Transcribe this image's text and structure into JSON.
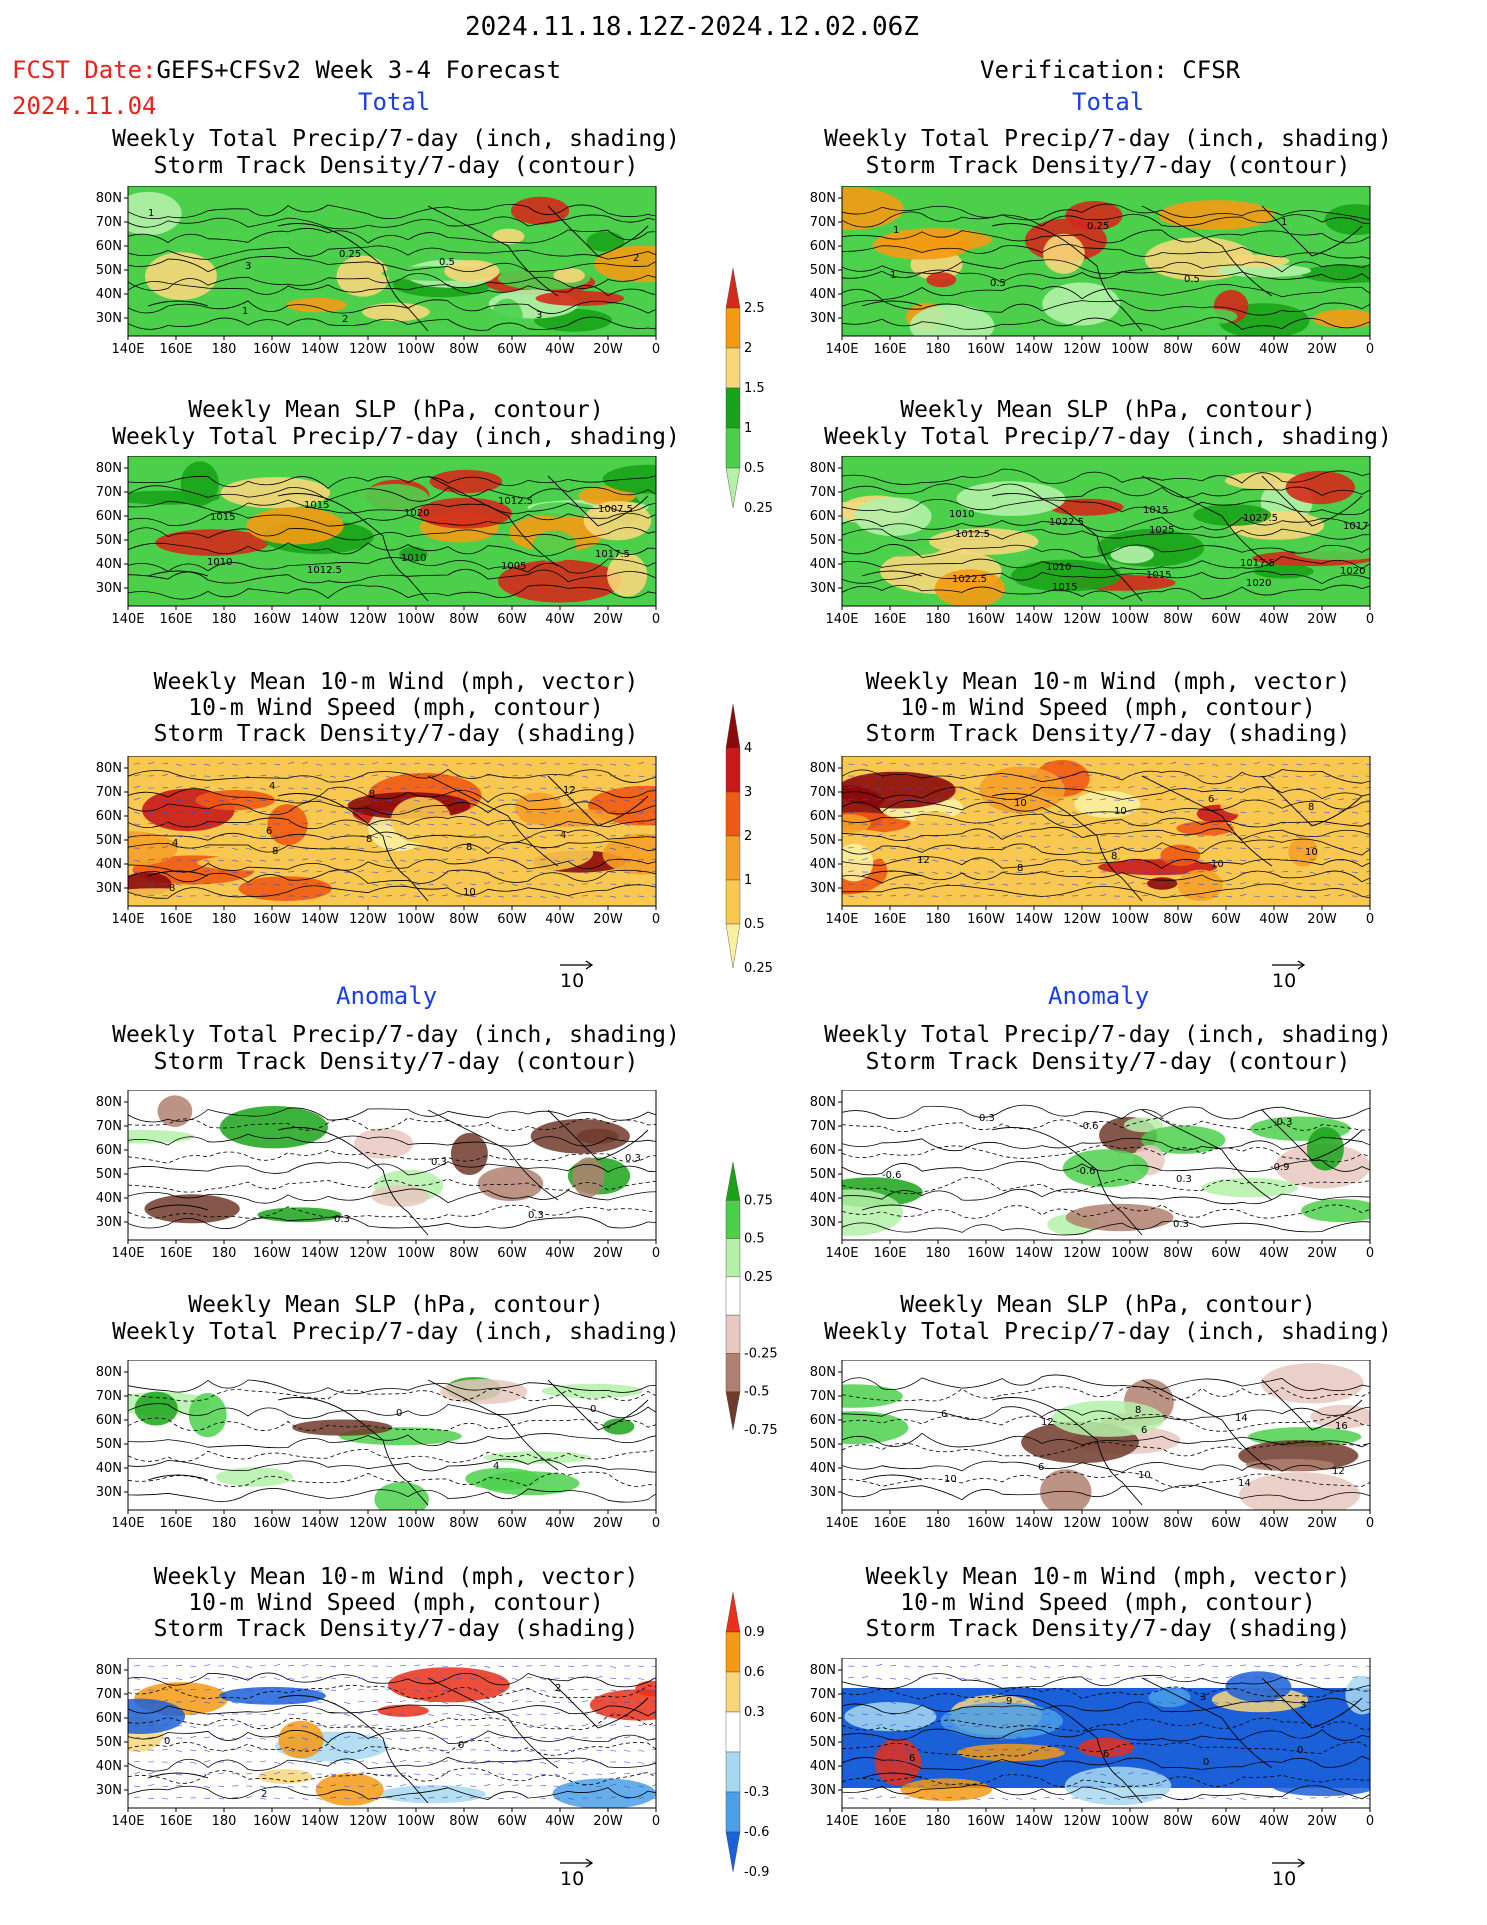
{
  "header": {
    "period": "2024.11.18.12Z-2024.12.02.06Z",
    "fcst_prefix": "FCST Date:",
    "fcst_label": "GEFS+CFSv2 Week 3-4 Forecast",
    "fcst_date": "2024.11.04",
    "verification": "Verification: CFSR"
  },
  "sections": {
    "total": "Total",
    "anomaly": "Anomaly"
  },
  "titles": {
    "precip_track": [
      "Weekly Total Precip/7-day (inch, shading)",
      "Storm Track Density/7-day (contour)"
    ],
    "slp_precip": [
      "Weekly Mean SLP (hPa, contour)",
      "Weekly Total Precip/7-day (inch, shading)"
    ],
    "wind": [
      "Weekly Mean 10-m Wind (mph, vector)",
      "10-m Wind Speed (mph, contour)",
      "Storm Track Density/7-day (shading)"
    ]
  },
  "axes": {
    "lat_ticks": [
      "80N",
      "70N",
      "60N",
      "50N",
      "40N",
      "30N"
    ],
    "lon_ticks": [
      "140E",
      "160E",
      "180",
      "160W",
      "140W",
      "120W",
      "100W",
      "80W",
      "60W",
      "40W",
      "20W",
      "0"
    ]
  },
  "vector_reference": "10",
  "colorbars": {
    "precip_total": {
      "labels": [
        "2.5",
        "2",
        "1.5",
        "1",
        "0.5",
        "0.25"
      ],
      "colors": [
        "#d42a1b",
        "#f59a14",
        "#f8d67a",
        "#1aa31a",
        "#4cd04c",
        "#b4f0a8"
      ]
    },
    "track_total": {
      "labels": [
        "4",
        "3",
        "2",
        "1",
        "0.5",
        "0.25"
      ],
      "colors": [
        "#8b0a0a",
        "#c81a1a",
        "#ef5a14",
        "#f5a02a",
        "#f8c850",
        "#fbf0a0"
      ]
    },
    "precip_anom": {
      "labels": [
        "0.75",
        "0.5",
        "0.25",
        "-0.25",
        "-0.5",
        "-0.75"
      ],
      "colors": [
        "#1aa31a",
        "#4cd04c",
        "#b4f0a8",
        "#ffffff",
        "#e8c8c0",
        "#b08070",
        "#6e3a2a"
      ]
    },
    "track_anom": {
      "labels": [
        "0.9",
        "0.6",
        "0.3",
        "-0.3",
        "-0.6",
        "-0.9"
      ],
      "colors": [
        "#e8301a",
        "#f59a14",
        "#f8d67a",
        "#ffffff",
        "#a8d8f0",
        "#4aa0e8",
        "#1a60d8"
      ]
    }
  },
  "panels": [
    {
      "id": "fc-total-precip",
      "col": 0,
      "kind": "precip",
      "labels": [
        "1",
        "3",
        "2",
        "0.5",
        "3",
        "2",
        "1",
        "0.25"
      ]
    },
    {
      "id": "vf-total-precip",
      "col": 1,
      "kind": "precip",
      "labels": [
        "1",
        "0.5",
        "0.25",
        "0.5",
        "1",
        "1"
      ]
    },
    {
      "id": "fc-total-slp",
      "col": 0,
      "kind": "precip",
      "labels": [
        "1015",
        "1012.5",
        "1020",
        "1005",
        "1007.5",
        "1010",
        "1015",
        "1010",
        "1012.5",
        "1017.5"
      ]
    },
    {
      "id": "vf-total-slp",
      "col": 1,
      "kind": "precip",
      "labels": [
        "1012.5",
        "1015",
        "1025",
        "1020",
        "1017.5",
        "1022.5",
        "1022.5",
        "1015",
        "1027.5",
        "1020",
        "1010",
        "1010",
        "1015",
        "1017.5"
      ]
    },
    {
      "id": "fc-total-wind",
      "col": 0,
      "kind": "track",
      "labels": [
        "8",
        "8",
        "8",
        "12",
        "4",
        "4",
        "8",
        "10",
        "4",
        "8",
        "6"
      ]
    },
    {
      "id": "vf-total-wind",
      "col": 1,
      "kind": "track",
      "labels": [
        "8",
        "10",
        "10",
        "8",
        "12",
        "10",
        "8",
        "6",
        "10"
      ]
    },
    {
      "id": "fc-anom-precip",
      "col": 0,
      "kind": "precip-anom",
      "labels": [
        "0.3",
        "0.3",
        "0.3",
        "0.3"
      ]
    },
    {
      "id": "vf-anom-precip",
      "col": 1,
      "kind": "precip-anom",
      "labels": [
        "-0.6",
        "0.3",
        "-0.3",
        "-0.6",
        "0.3",
        "-0.6",
        "0.3",
        "-0.9"
      ]
    },
    {
      "id": "fc-anom-slp",
      "col": 0,
      "kind": "precip-anom",
      "labels": [
        "0",
        "4",
        "0"
      ]
    },
    {
      "id": "vf-anom-slp",
      "col": 1,
      "kind": "precip-anom",
      "labels": [
        "6",
        "14",
        "16",
        "10",
        "12",
        "10",
        "14",
        "12",
        "6",
        "6",
        "8"
      ]
    },
    {
      "id": "fc-anom-wind",
      "col": 0,
      "kind": "track-anom",
      "labels": [
        "0",
        "2",
        "0",
        "2"
      ]
    },
    {
      "id": "vf-anom-wind",
      "col": 1,
      "kind": "track-anom",
      "labels": [
        "0",
        "3",
        "6",
        "9",
        "6",
        "3",
        "0"
      ]
    }
  ]
}
